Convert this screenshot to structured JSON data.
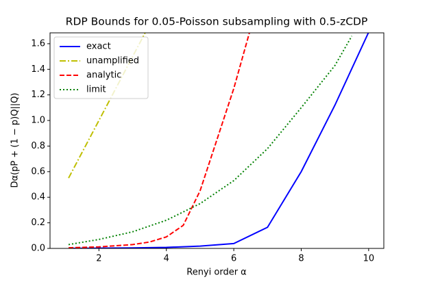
{
  "chart_data": {
    "type": "line",
    "title": "RDP Bounds for 0.05-Poisson subsampling with 0.5-zCDP",
    "xlabel": "Renyi order α",
    "ylabel": "Dα(pP + (1 − p)Q||Q)",
    "xlim": [
      0.55,
      10.45
    ],
    "ylim": [
      0,
      1.685
    ],
    "xticks": [
      2,
      4,
      6,
      8,
      10
    ],
    "yticks": [
      {
        "value": 0,
        "label": "0.0"
      },
      {
        "value": 0.2,
        "label": "0.2"
      },
      {
        "value": 0.4,
        "label": "0.4"
      },
      {
        "value": 0.6,
        "label": "0.6"
      },
      {
        "value": 0.8,
        "label": "0.8"
      },
      {
        "value": 1.0,
        "label": "1.0"
      },
      {
        "value": 1.2,
        "label": "1.2"
      },
      {
        "value": 1.4,
        "label": "1.4"
      },
      {
        "value": 1.6,
        "label": "1.6"
      }
    ],
    "legend": "upper left",
    "series": [
      {
        "name": "exact",
        "color": "#0000ff",
        "linestyle": "solid",
        "x": [
          1.1,
          2,
          3,
          4,
          5,
          6,
          7,
          8,
          9,
          10
        ],
        "values": [
          0.001,
          0.002,
          0.004,
          0.008,
          0.018,
          0.038,
          0.165,
          0.6,
          1.12,
          1.69
        ]
      },
      {
        "name": "unamplified",
        "color": "#bfbf00",
        "linestyle": "dashdot",
        "x": [
          1.1,
          3.5
        ],
        "values": [
          0.55,
          1.75
        ]
      },
      {
        "name": "analytic",
        "color": "#ff0000",
        "linestyle": "dashed",
        "x": [
          1.1,
          2,
          3,
          3.5,
          4,
          4.5,
          5,
          5.5,
          6,
          6.5
        ],
        "values": [
          0.005,
          0.012,
          0.03,
          0.05,
          0.09,
          0.18,
          0.45,
          0.85,
          1.25,
          1.72
        ]
      },
      {
        "name": "limit",
        "color": "#008000",
        "linestyle": "dotted",
        "x": [
          1.1,
          2,
          3,
          4,
          5,
          6,
          7,
          8,
          9,
          9.5
        ],
        "values": [
          0.03,
          0.07,
          0.13,
          0.22,
          0.35,
          0.53,
          0.78,
          1.1,
          1.43,
          1.66
        ]
      }
    ]
  }
}
